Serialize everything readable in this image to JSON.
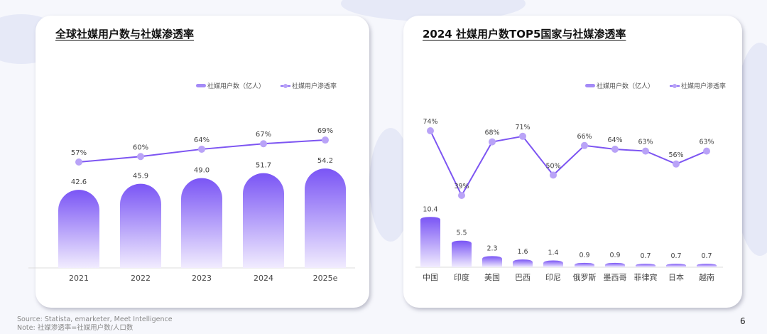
{
  "colors": {
    "bar_top": "#7a55f5",
    "bar_bottom": "#f1ecfe",
    "line": "#7d55f2",
    "marker": "#b9a3f7",
    "label": "#444444",
    "axis": "#dddddd"
  },
  "legend": {
    "bar": "社媒用户数（亿人）",
    "line": "社媒用户渗透率"
  },
  "chart_data": [
    {
      "type": "bar+line",
      "title": "全球社媒用户数与社媒渗透率",
      "categories": [
        "2021",
        "2022",
        "2023",
        "2024",
        "2025e"
      ],
      "series": [
        {
          "name": "社媒用户数（亿人）",
          "type": "bar",
          "values": [
            42.6,
            45.9,
            49.0,
            51.7,
            54.2
          ],
          "labels": [
            "42.6",
            "45.9",
            "49.0",
            "51.7",
            "54.2"
          ]
        },
        {
          "name": "社媒用户渗透率",
          "type": "line",
          "values": [
            57,
            60,
            64,
            67,
            69
          ],
          "labels": [
            "57%",
            "60%",
            "64%",
            "67%",
            "69%"
          ]
        }
      ],
      "legend": "top-right",
      "grid": false
    },
    {
      "type": "bar+line",
      "title": "2024 社媒用户数TOP5国家与社媒渗透率",
      "categories": [
        "中国",
        "印度",
        "美国",
        "巴西",
        "印尼",
        "俄罗斯",
        "墨西哥",
        "菲律宾",
        "日本",
        "越南"
      ],
      "series": [
        {
          "name": "社媒用户数（亿人）",
          "type": "bar",
          "values": [
            10.4,
            5.5,
            2.3,
            1.6,
            1.4,
            0.9,
            0.9,
            0.7,
            0.7,
            0.7
          ],
          "labels": [
            "10.4",
            "5.5",
            "2.3",
            "1.6",
            "1.4",
            "0.9",
            "0.9",
            "0.7",
            "0.7",
            "0.7"
          ]
        },
        {
          "name": "社媒用户渗透率",
          "type": "line",
          "values": [
            74,
            39,
            68,
            71,
            50,
            66,
            64,
            63,
            56,
            63
          ],
          "labels": [
            "74%",
            "39%",
            "68%",
            "71%",
            "50%",
            "66%",
            "64%",
            "63%",
            "56%",
            "63%"
          ]
        }
      ],
      "legend": "top-right",
      "grid": false
    }
  ],
  "footer": {
    "source": "Source: Statista, emarketer, Meet Intelligence",
    "note": "Note: 社媒渗透率=社媒用户数/人口数",
    "page": "6"
  }
}
